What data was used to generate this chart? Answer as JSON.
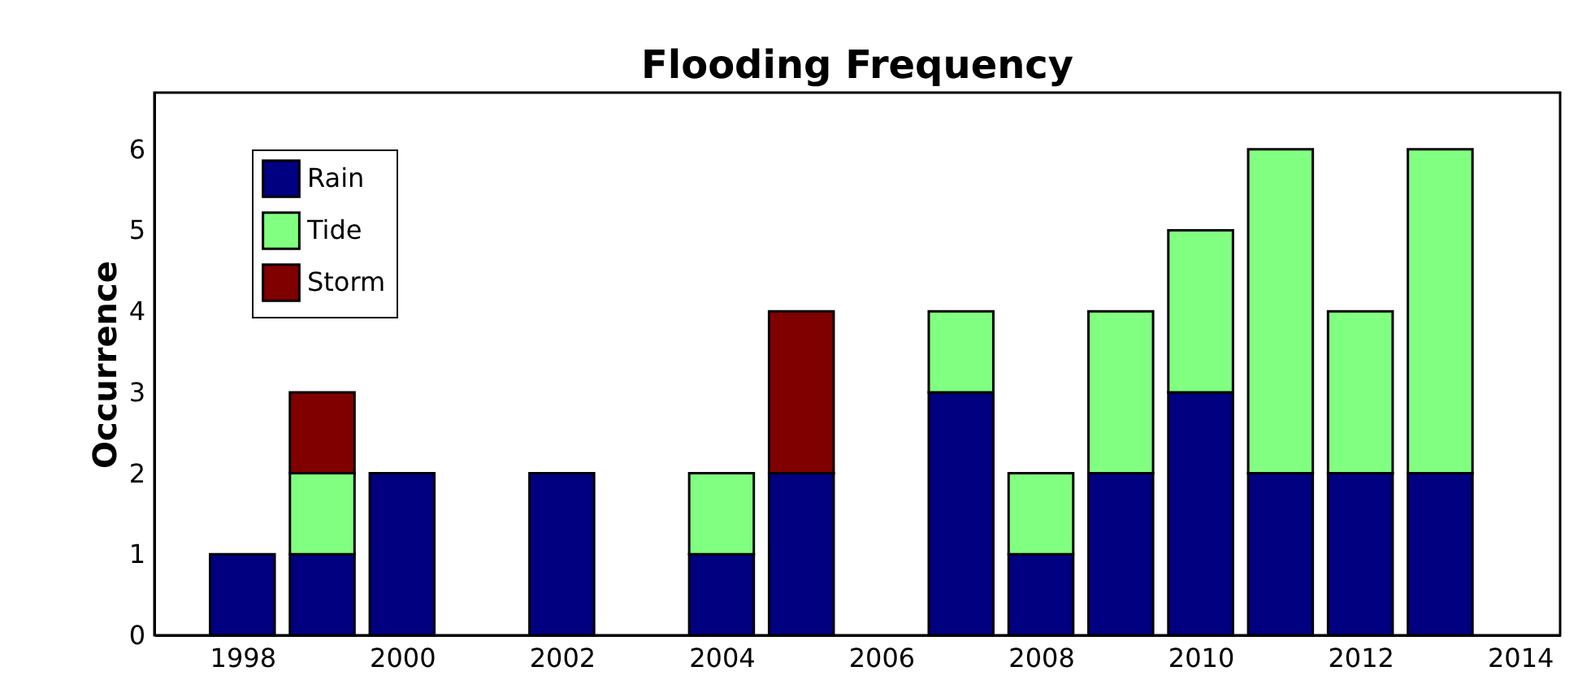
{
  "chart_data": {
    "type": "bar",
    "title": "Flooding Frequency",
    "ylabel": "Occurrence",
    "stacked": true,
    "x": [
      1998,
      1999,
      2000,
      2002,
      2004,
      2005,
      2007,
      2008,
      2009,
      2010,
      2011,
      2012,
      2013
    ],
    "series": [
      {
        "name": "Rain",
        "color": "#000080",
        "values": [
          1,
          1,
          2,
          2,
          1,
          2,
          3,
          1,
          2,
          3,
          2,
          2,
          2
        ]
      },
      {
        "name": "Tide",
        "color": "#80ff80",
        "values": [
          null,
          1,
          null,
          null,
          1,
          null,
          1,
          1,
          2,
          2,
          4,
          2,
          4
        ]
      },
      {
        "name": "Storm",
        "color": "#800000",
        "values": [
          null,
          1,
          null,
          null,
          null,
          2,
          null,
          null,
          null,
          null,
          null,
          null,
          null
        ]
      }
    ],
    "xlim": [
      1997,
      2014.4
    ],
    "xticks": [
      1998,
      2000,
      2002,
      2004,
      2006,
      2008,
      2010,
      2012,
      2014
    ],
    "ylim": [
      0,
      6.7
    ],
    "yticks": [
      0,
      1,
      2,
      3,
      4,
      5,
      6
    ],
    "grid": false,
    "legend": "top left"
  }
}
